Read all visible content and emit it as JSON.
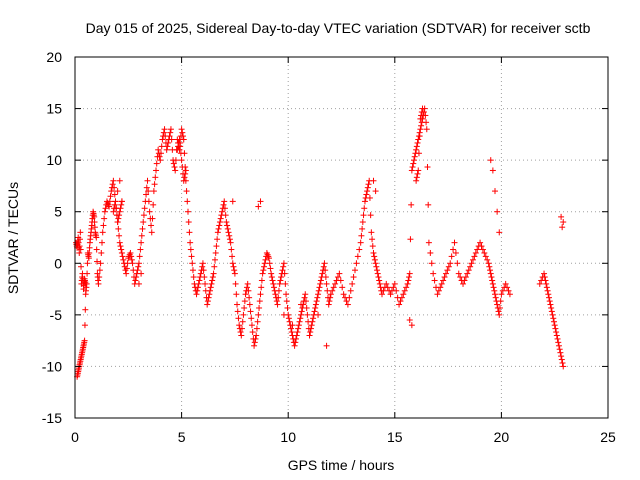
{
  "chart_data": {
    "type": "scatter",
    "title": "Day 015 of 2025, Sidereal Day-to-day VTEC variation (SDTVAR) for receiver sctb",
    "xlabel": "GPS time / hours",
    "ylabel": "SDTVAR / TECUs",
    "xlim": [
      0,
      25
    ],
    "ylim": [
      -15,
      20
    ],
    "xticks": [
      0,
      5,
      10,
      15,
      20,
      25
    ],
    "yticks": [
      -15,
      -10,
      -5,
      0,
      5,
      10,
      15,
      20
    ],
    "xtick_labels": [
      "0",
      "5",
      "10",
      "15",
      "20",
      "25"
    ],
    "ytick_labels": [
      "-15",
      "-10",
      "-5",
      "0",
      "5",
      "10",
      "15",
      "20"
    ],
    "grid": true,
    "marker": "plus",
    "color": "#ff0000",
    "series": [
      {
        "name": "SDTVAR",
        "x": [
          0.05,
          0.1,
          0.15,
          0.2,
          0.25,
          0.3,
          0.35,
          0.4,
          0.45,
          0.5,
          0.1,
          0.15,
          0.2,
          0.25,
          0.3,
          0.35,
          0.4,
          0.45,
          0.5,
          0.55,
          0.6,
          0.65,
          0.7,
          0.75,
          0.8,
          0.85,
          0.9,
          0.95,
          1.0,
          1.05,
          1.1,
          1.2,
          1.3,
          1.4,
          1.5,
          1.6,
          1.7,
          1.8,
          1.9,
          2.0,
          2.1,
          2.2,
          2.3,
          2.4,
          2.5,
          2.6,
          2.7,
          2.8,
          2.9,
          3.0,
          3.1,
          3.2,
          3.3,
          3.4,
          3.5,
          3.6,
          3.7,
          3.8,
          3.9,
          4.0,
          4.1,
          4.2,
          4.3,
          4.4,
          4.5,
          4.6,
          4.7,
          4.8,
          4.9,
          5.0,
          5.1,
          5.2,
          5.3,
          5.4,
          5.5,
          5.6,
          5.7,
          5.8,
          5.9,
          6.0,
          6.1,
          6.2,
          6.3,
          6.4,
          6.5,
          6.6,
          6.7,
          6.8,
          6.9,
          7.0,
          7.1,
          7.2,
          7.3,
          7.4,
          7.5,
          7.6,
          7.7,
          7.8,
          7.9,
          8.0,
          8.1,
          8.2,
          8.3,
          8.4,
          8.5,
          8.6,
          8.7,
          8.8,
          8.9,
          9.0,
          9.1,
          9.2,
          9.3,
          9.4,
          9.5,
          9.6,
          9.7,
          9.8,
          9.9,
          10.0,
          10.1,
          10.2,
          10.3,
          10.4,
          10.5,
          10.6,
          10.7,
          10.8,
          10.9,
          11.0,
          11.1,
          11.2,
          11.3,
          11.4,
          11.5,
          11.6,
          11.7,
          11.8,
          11.9,
          12.0,
          12.2,
          12.4,
          12.6,
          12.8,
          13.0,
          13.2,
          13.4,
          13.5,
          13.6,
          13.7,
          13.8,
          13.9,
          14.0,
          14.1,
          14.2,
          14.3,
          14.4,
          14.6,
          14.8,
          15.0,
          15.2,
          15.4,
          15.6,
          15.7,
          15.8,
          15.9,
          16.0,
          16.1,
          16.2,
          16.3,
          16.4,
          16.5,
          16.6,
          16.8,
          17.0,
          17.2,
          17.4,
          17.6,
          17.8,
          18.0,
          18.2,
          18.4,
          18.6,
          18.8,
          19.0,
          19.2,
          19.4,
          19.5,
          19.6,
          19.7,
          19.8,
          19.9,
          20.0,
          20.2,
          20.4,
          21.8,
          22.0,
          22.1,
          22.2,
          22.3,
          22.4,
          22.5,
          22.6,
          22.7,
          22.8,
          22.9,
          4.8,
          4.9,
          5.0,
          5.1,
          5.2,
          1.8,
          1.9,
          2.0,
          2.1,
          2.2,
          16.0,
          16.1,
          16.2,
          16.3,
          9.8,
          10.2,
          10.6,
          11.0,
          11.4,
          11.8
        ],
        "y": [
          2,
          1.5,
          2.5,
          1,
          3,
          -2,
          -1,
          -2.5,
          -1.5,
          -2,
          -11,
          -10.5,
          -10,
          -9.5,
          -9,
          -8.5,
          -8,
          -7.5,
          -3,
          -2,
          1,
          0.5,
          2,
          3,
          4,
          5,
          4.5,
          3,
          2.5,
          -1,
          -2,
          0,
          3,
          5,
          6,
          5.5,
          7,
          8,
          6,
          4,
          2,
          1,
          0,
          -1,
          0.5,
          1,
          0,
          -2,
          -1,
          0,
          2,
          4,
          6,
          8,
          5,
          3,
          7,
          9,
          11,
          10,
          12,
          13,
          11,
          12,
          13,
          10,
          9,
          12,
          11,
          13,
          12,
          8,
          5,
          2,
          0,
          -2,
          -3,
          -2,
          -1,
          0,
          -2,
          -4,
          -3,
          -2,
          -1,
          1,
          3,
          4,
          5,
          6,
          4,
          3,
          2,
          0,
          -1,
          -4,
          -6,
          -7,
          -5,
          -3,
          -2,
          -4,
          -6,
          -8,
          -7,
          -5,
          -3,
          -1,
          0,
          1,
          0.5,
          -1,
          -2,
          -3,
          -4,
          -2,
          -1,
          0,
          -3,
          -5,
          -6,
          -7,
          -8,
          -7,
          -6,
          -5,
          -4,
          -3,
          -5,
          -7,
          -6,
          -5,
          -4,
          -3,
          -2,
          -1,
          0,
          -2,
          -4,
          -3,
          -2,
          -1,
          -3,
          -4,
          -2,
          0,
          2,
          4,
          6,
          7,
          8,
          3,
          1,
          0,
          -1,
          -2,
          -3,
          -2,
          -3,
          -2,
          -4,
          -3,
          -2,
          -1,
          9,
          10,
          11,
          12,
          13,
          14,
          15,
          13,
          2,
          -1,
          -3,
          -2,
          -1,
          0,
          2,
          -1,
          -2,
          -1,
          0,
          1,
          2,
          1,
          0,
          -1,
          -2,
          -3,
          -4,
          -5,
          -3,
          -2,
          -3,
          -2,
          -1,
          -2,
          -3,
          -4,
          -5,
          -6,
          -7,
          -8,
          -9,
          -10,
          11,
          12,
          10,
          8,
          9,
          5,
          6,
          4,
          5,
          6,
          8,
          9,
          14,
          15,
          -5,
          -6,
          -4,
          -7,
          -5,
          -8
        ],
        "x2": [
          19.5,
          19.6,
          19.7,
          19.8,
          19.9,
          22.8,
          22.85,
          22.9,
          15.7,
          15.8,
          2.0,
          2.1,
          2.2,
          3.0,
          3.1,
          7.4,
          8.6,
          8.7,
          14.0,
          14.1
        ],
        "y2": [
          10,
          9,
          7,
          5,
          3,
          4.5,
          3.5,
          4,
          -5.5,
          -6,
          7,
          8,
          6,
          -2,
          -1,
          6,
          5.5,
          6,
          8,
          7
        ]
      }
    ]
  }
}
